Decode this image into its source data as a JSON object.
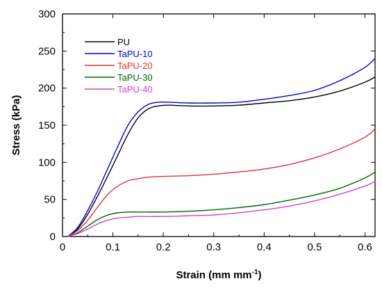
{
  "chart_data": {
    "type": "line",
    "title": "",
    "xlabel": "Strain (mm mm",
    "xlabel_sup": "-1",
    "xlabel_end": ")",
    "ylabel": "Stress (kPa)",
    "xlim": [
      0,
      0.62
    ],
    "ylim": [
      0,
      300
    ],
    "xticks": [
      0,
      0.1,
      0.2,
      0.3,
      0.4,
      0.5,
      0.6
    ],
    "xtick_labels": [
      "0",
      "0.1",
      "0.2",
      "0.3",
      "0.4",
      "0.5",
      "0.6"
    ],
    "yticks": [
      0,
      50,
      100,
      150,
      200,
      250,
      300
    ],
    "ytick_labels": [
      "0",
      "50",
      "100",
      "150",
      "200",
      "250",
      "300"
    ],
    "grid": false,
    "legend_position": "top-left",
    "series": [
      {
        "name": "PU",
        "color": "#000000",
        "x": [
          0.01,
          0.03,
          0.05,
          0.07,
          0.09,
          0.11,
          0.13,
          0.15,
          0.17,
          0.19,
          0.21,
          0.25,
          0.3,
          0.35,
          0.4,
          0.45,
          0.5,
          0.55,
          0.6,
          0.62
        ],
        "y": [
          0,
          10,
          30,
          55,
          82,
          110,
          138,
          160,
          172,
          176,
          177,
          176,
          176,
          177,
          180,
          183,
          188,
          196,
          208,
          215
        ]
      },
      {
        "name": "TaPU-10",
        "color": "#0000cc",
        "x": [
          0.01,
          0.03,
          0.05,
          0.07,
          0.09,
          0.11,
          0.13,
          0.15,
          0.17,
          0.19,
          0.21,
          0.25,
          0.3,
          0.35,
          0.4,
          0.45,
          0.5,
          0.55,
          0.6,
          0.62
        ],
        "y": [
          0,
          12,
          35,
          62,
          92,
          122,
          150,
          168,
          178,
          181,
          181,
          180,
          180,
          181,
          185,
          190,
          197,
          210,
          228,
          240
        ]
      },
      {
        "name": "TaPU-20",
        "color": "#e03030",
        "x": [
          0.01,
          0.03,
          0.05,
          0.07,
          0.09,
          0.11,
          0.13,
          0.15,
          0.17,
          0.2,
          0.25,
          0.3,
          0.35,
          0.4,
          0.45,
          0.5,
          0.55,
          0.6,
          0.62
        ],
        "y": [
          0,
          8,
          22,
          40,
          57,
          68,
          75,
          78,
          80,
          81,
          82,
          84,
          87,
          91,
          97,
          106,
          118,
          134,
          145
        ]
      },
      {
        "name": "TaPU-30",
        "color": "#006400",
        "x": [
          0.01,
          0.03,
          0.05,
          0.07,
          0.09,
          0.11,
          0.13,
          0.15,
          0.2,
          0.25,
          0.3,
          0.35,
          0.4,
          0.45,
          0.5,
          0.55,
          0.6,
          0.62
        ],
        "y": [
          0,
          5,
          14,
          23,
          29,
          32,
          33,
          33,
          33,
          34,
          36,
          39,
          43,
          49,
          56,
          65,
          79,
          87
        ]
      },
      {
        "name": "TaPU-40",
        "color": "#cc44cc",
        "x": [
          0.01,
          0.03,
          0.05,
          0.07,
          0.09,
          0.11,
          0.13,
          0.15,
          0.2,
          0.25,
          0.3,
          0.35,
          0.4,
          0.45,
          0.5,
          0.55,
          0.6,
          0.62
        ],
        "y": [
          0,
          4,
          10,
          17,
          22,
          25,
          26,
          27,
          27,
          28,
          29,
          32,
          36,
          41,
          48,
          57,
          68,
          74
        ]
      }
    ]
  }
}
